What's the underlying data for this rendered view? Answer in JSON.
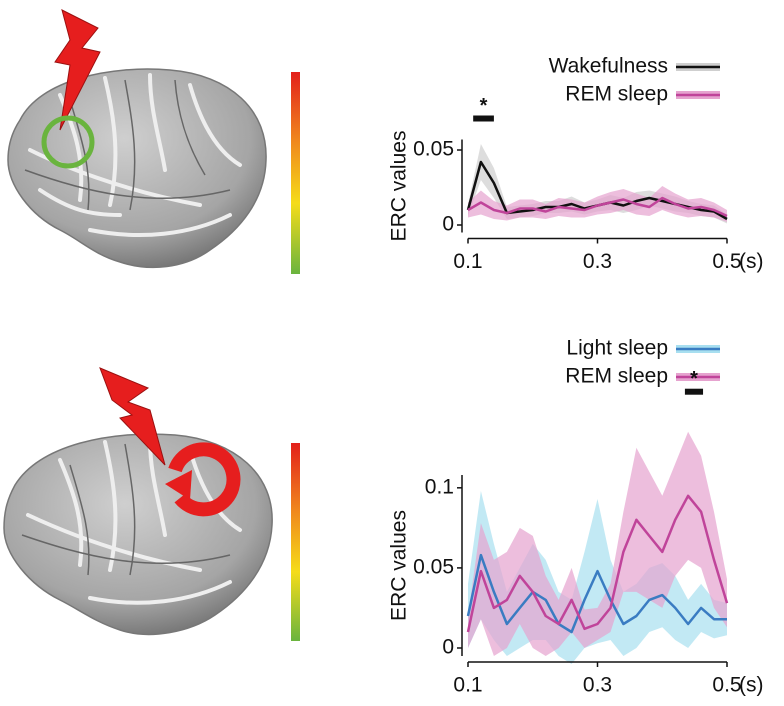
{
  "chart_data": [
    {
      "type": "line",
      "ylabel": "ERC values",
      "xlabel": "(s)",
      "x": [
        0.1,
        0.12,
        0.14,
        0.16,
        0.18,
        0.2,
        0.22,
        0.24,
        0.26,
        0.28,
        0.3,
        0.32,
        0.34,
        0.36,
        0.38,
        0.4,
        0.42,
        0.44,
        0.46,
        0.48,
        0.5
      ],
      "xlim": [
        0.1,
        0.5
      ],
      "xticks": [
        0.1,
        0.3,
        0.5
      ],
      "ylim": [
        -0.005,
        0.057
      ],
      "yticks": [
        0,
        0.05
      ],
      "legend": "upper right",
      "series": [
        {
          "name": "Wakefulness",
          "color": "#111111",
          "band_color": "#cfcfcf",
          "values": [
            0.01,
            0.042,
            0.028,
            0.008,
            0.009,
            0.01,
            0.012,
            0.012,
            0.014,
            0.011,
            0.013,
            0.015,
            0.013,
            0.016,
            0.018,
            0.016,
            0.014,
            0.012,
            0.01,
            0.009,
            0.004
          ],
          "error": [
            0.004,
            0.012,
            0.01,
            0.004,
            0.004,
            0.004,
            0.004,
            0.004,
            0.005,
            0.004,
            0.004,
            0.005,
            0.005,
            0.006,
            0.005,
            0.005,
            0.005,
            0.004,
            0.004,
            0.004,
            0.003
          ]
        },
        {
          "name": "REM sleep",
          "color": "#c0449a",
          "band_color": "#e6a3cf",
          "values": [
            0.01,
            0.015,
            0.01,
            0.008,
            0.011,
            0.011,
            0.009,
            0.012,
            0.011,
            0.01,
            0.013,
            0.015,
            0.017,
            0.014,
            0.012,
            0.018,
            0.014,
            0.011,
            0.012,
            0.01,
            0.006
          ],
          "error": [
            0.005,
            0.008,
            0.006,
            0.005,
            0.006,
            0.006,
            0.005,
            0.006,
            0.006,
            0.005,
            0.006,
            0.007,
            0.007,
            0.007,
            0.006,
            0.008,
            0.007,
            0.006,
            0.006,
            0.005,
            0.004
          ]
        }
      ],
      "annotations": [
        {
          "text": "*",
          "x0": 0.108,
          "x1": 0.14,
          "y": 0.071
        }
      ]
    },
    {
      "type": "line",
      "ylabel": "ERC values",
      "xlabel": "(s)",
      "x": [
        0.1,
        0.12,
        0.14,
        0.16,
        0.18,
        0.2,
        0.22,
        0.24,
        0.26,
        0.28,
        0.3,
        0.32,
        0.34,
        0.36,
        0.38,
        0.4,
        0.42,
        0.44,
        0.46,
        0.48,
        0.5
      ],
      "xlim": [
        0.1,
        0.5
      ],
      "xticks": [
        0.1,
        0.3,
        0.5
      ],
      "ylim": [
        -0.005,
        0.108
      ],
      "yticks": [
        0,
        0.05,
        0.1
      ],
      "legend": "upper right",
      "series": [
        {
          "name": "Light sleep",
          "color": "#3a7cc2",
          "band_color": "#a8dff0",
          "values": [
            0.02,
            0.058,
            0.035,
            0.015,
            0.025,
            0.035,
            0.03,
            0.015,
            0.01,
            0.03,
            0.048,
            0.03,
            0.015,
            0.02,
            0.03,
            0.033,
            0.025,
            0.015,
            0.025,
            0.018,
            0.018
          ],
          "error": [
            0.02,
            0.04,
            0.03,
            0.02,
            0.025,
            0.03,
            0.025,
            0.02,
            0.02,
            0.03,
            0.045,
            0.025,
            0.02,
            0.02,
            0.02,
            0.02,
            0.02,
            0.015,
            0.015,
            0.012,
            0.01
          ]
        },
        {
          "name": "REM sleep",
          "color": "#c0449a",
          "band_color": "#e6a3cf",
          "values": [
            0.01,
            0.048,
            0.025,
            0.03,
            0.045,
            0.035,
            0.02,
            0.015,
            0.03,
            0.012,
            0.015,
            0.025,
            0.06,
            0.08,
            0.07,
            0.06,
            0.08,
            0.095,
            0.085,
            0.055,
            0.028
          ],
          "error": [
            0.01,
            0.03,
            0.03,
            0.03,
            0.03,
            0.035,
            0.025,
            0.015,
            0.02,
            0.012,
            0.01,
            0.015,
            0.025,
            0.045,
            0.04,
            0.035,
            0.035,
            0.04,
            0.035,
            0.03,
            0.015
          ]
        }
      ],
      "annotations": [
        {
          "text": "*",
          "x0": 0.435,
          "x1": 0.463,
          "y": 0.16
        }
      ]
    }
  ]
}
